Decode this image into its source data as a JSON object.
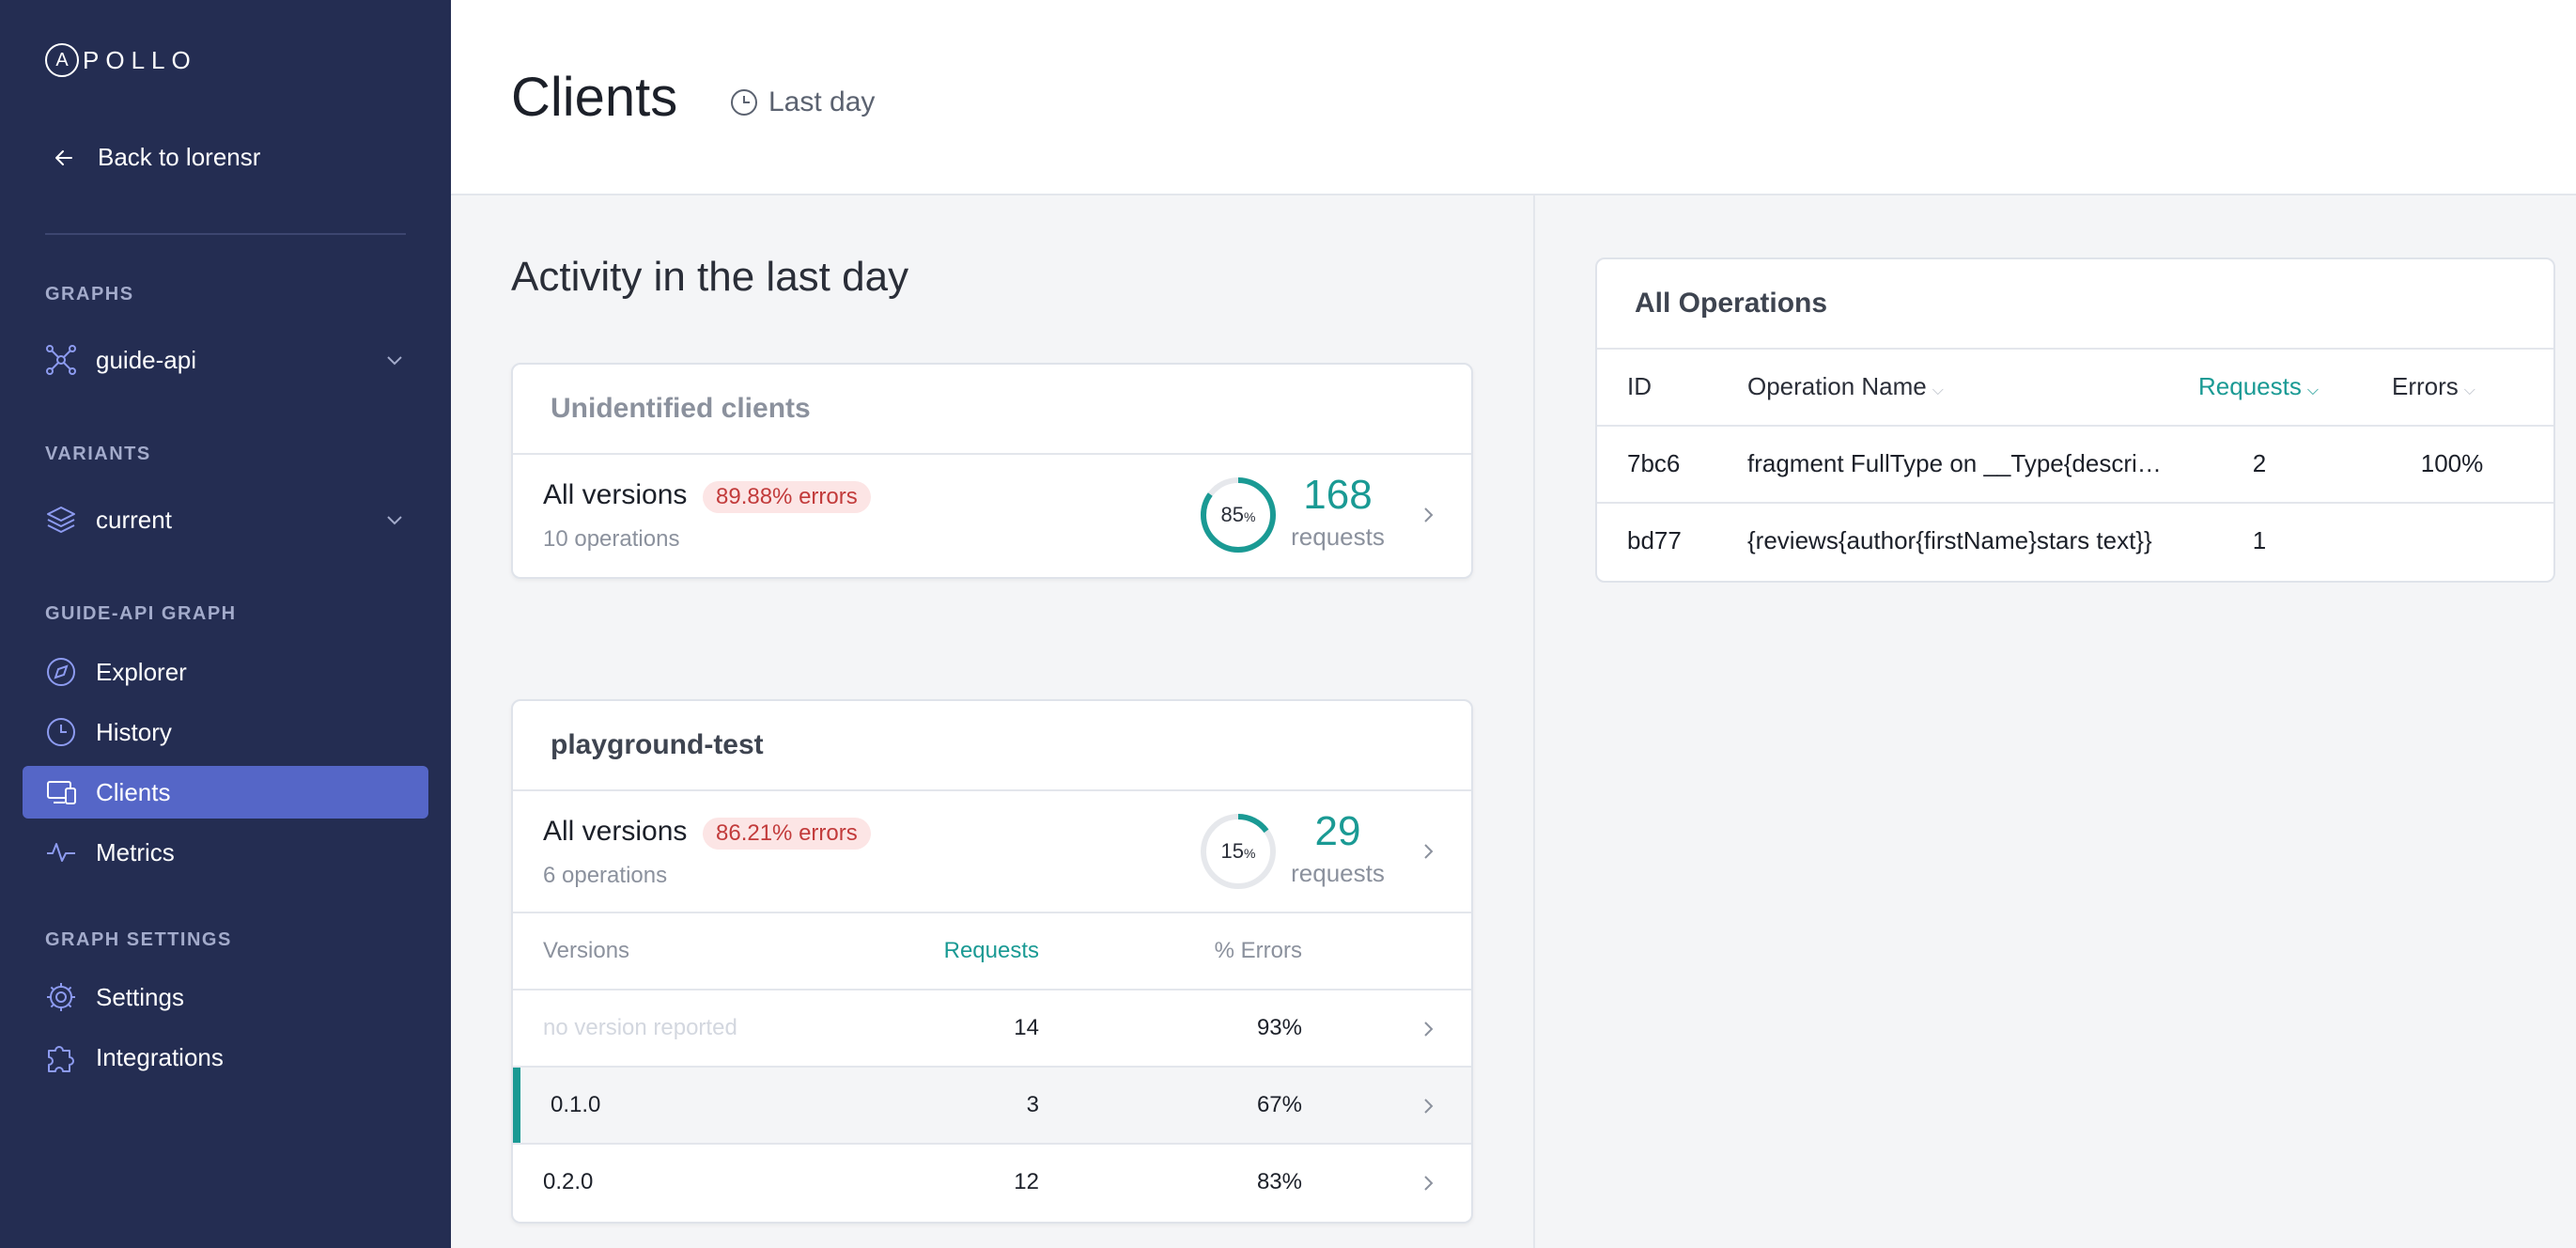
{
  "sidebar": {
    "logo": "APOLLO",
    "back_label": "Back to lorensr",
    "graphs_label": "GRAPHS",
    "graph_name": "guide-api",
    "variants_label": "VARIANTS",
    "variant_name": "current",
    "graph_section_label": "GUIDE-API GRAPH",
    "nav": [
      {
        "label": "Explorer",
        "icon": "compass-icon"
      },
      {
        "label": "History",
        "icon": "clock-icon"
      },
      {
        "label": "Clients",
        "icon": "devices-icon",
        "active": true
      },
      {
        "label": "Metrics",
        "icon": "pulse-icon"
      }
    ],
    "settings_section_label": "GRAPH SETTINGS",
    "settings_nav": [
      {
        "label": "Settings",
        "icon": "gear-icon"
      },
      {
        "label": "Integrations",
        "icon": "puzzle-icon"
      }
    ]
  },
  "header": {
    "title": "Clients",
    "time_range": "Last day"
  },
  "main": {
    "section_title": "Activity in the last day",
    "clients": [
      {
        "name": "Unidentified clients",
        "all_versions_label": "All versions",
        "error_pill": "89.88% errors",
        "operations": "10 operations",
        "share_percent": 85,
        "share_unit": "%",
        "requests": "168",
        "requests_label": "requests"
      },
      {
        "name": "playground-test",
        "all_versions_label": "All versions",
        "error_pill": "86.21% errors",
        "operations": "6 operations",
        "share_percent": 15,
        "share_unit": "%",
        "requests": "29",
        "requests_label": "requests",
        "versions_table": {
          "headers": [
            "Versions",
            "Requests",
            "% Errors"
          ],
          "rows": [
            {
              "version": "no version reported",
              "requests": "14",
              "errors": "93%"
            },
            {
              "version": "0.1.0",
              "requests": "3",
              "errors": "67%",
              "selected": true
            },
            {
              "version": "0.2.0",
              "requests": "12",
              "errors": "83%"
            }
          ]
        }
      }
    ]
  },
  "operations": {
    "title": "All Operations",
    "headers": [
      "ID",
      "Operation Name",
      "Requests",
      "Errors"
    ],
    "rows": [
      {
        "id": "7bc6",
        "name": "fragment FullType on __Type{descri…",
        "requests": "2",
        "errors": "100%"
      },
      {
        "id": "bd77",
        "name": "{reviews{author{firstName}stars text}}",
        "requests": "1",
        "errors": ""
      }
    ]
  },
  "colors": {
    "sidebar_bg": "#242d52",
    "active_nav": "#5566c7",
    "teal": "#1a9a94",
    "error_bg": "#fce5e5",
    "error_text": "#c23b3b"
  }
}
